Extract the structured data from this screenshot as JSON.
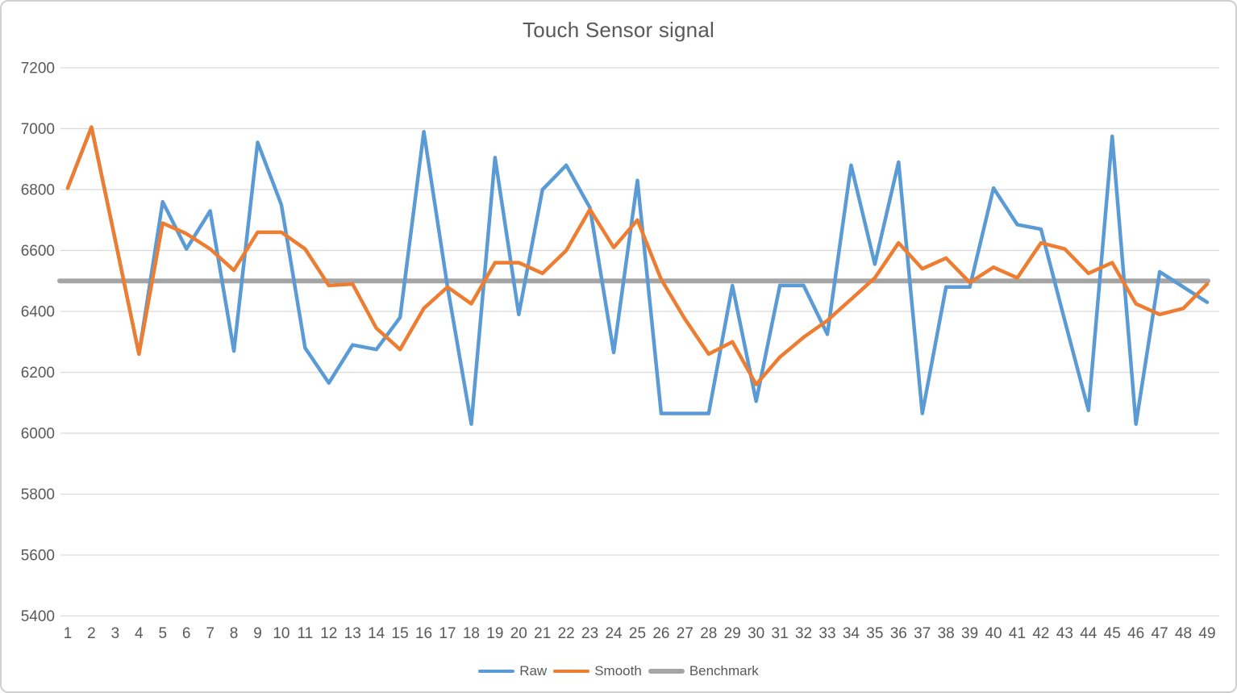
{
  "window": {
    "background": "#FFFFFF",
    "border_color": "#D0D0D0"
  },
  "chart_data": {
    "type": "line",
    "title": "Touch Sensor signal",
    "xlabel": "",
    "ylabel": "",
    "x": [
      1,
      2,
      3,
      4,
      5,
      6,
      7,
      8,
      9,
      10,
      11,
      12,
      13,
      14,
      15,
      16,
      17,
      18,
      19,
      20,
      21,
      22,
      23,
      24,
      25,
      26,
      27,
      28,
      29,
      30,
      31,
      32,
      33,
      34,
      35,
      36,
      37,
      38,
      39,
      40,
      41,
      42,
      43,
      44,
      45,
      46,
      47,
      48,
      49
    ],
    "ylim": [
      5400,
      7200
    ],
    "y_ticks": [
      5400,
      5600,
      5800,
      6000,
      6200,
      6400,
      6600,
      6800,
      7000,
      7200
    ],
    "grid": "horizontal",
    "gridline_color": "#D9D9D9",
    "text_color": "#595959",
    "legend_position": "bottom",
    "series": [
      {
        "name": "Raw",
        "color": "#5B9BD5",
        "layer": 1,
        "values": [
          6805,
          7005,
          6635,
          6260,
          6760,
          6605,
          6730,
          6270,
          6955,
          6750,
          6280,
          6165,
          6290,
          6275,
          6380,
          6990,
          6480,
          6030,
          6905,
          6390,
          6800,
          6880,
          6740,
          6265,
          6830,
          6065,
          6065,
          6065,
          6485,
          6105,
          6485,
          6485,
          6325,
          6880,
          6555,
          6890,
          6065,
          6480,
          6480,
          6805,
          6685,
          6670,
          6370,
          6075,
          6975,
          6030,
          6530,
          6480,
          6430
        ]
      },
      {
        "name": "Smooth",
        "color": "#ED7D31",
        "layer": 2,
        "values": [
          6805,
          7005,
          6635,
          6260,
          6690,
          6655,
          6605,
          6535,
          6660,
          6660,
          6605,
          6485,
          6490,
          6345,
          6275,
          6410,
          6480,
          6425,
          6560,
          6560,
          6525,
          6600,
          6735,
          6610,
          6700,
          6505,
          6375,
          6260,
          6300,
          6160,
          6250,
          6315,
          6370,
          6440,
          6510,
          6625,
          6540,
          6575,
          6495,
          6545,
          6510,
          6625,
          6605,
          6525,
          6560,
          6425,
          6390,
          6410,
          6490
        ]
      },
      {
        "name": "Benchmark",
        "color": "#A5A5A5",
        "layer": 0,
        "constant": 6500
      }
    ]
  }
}
